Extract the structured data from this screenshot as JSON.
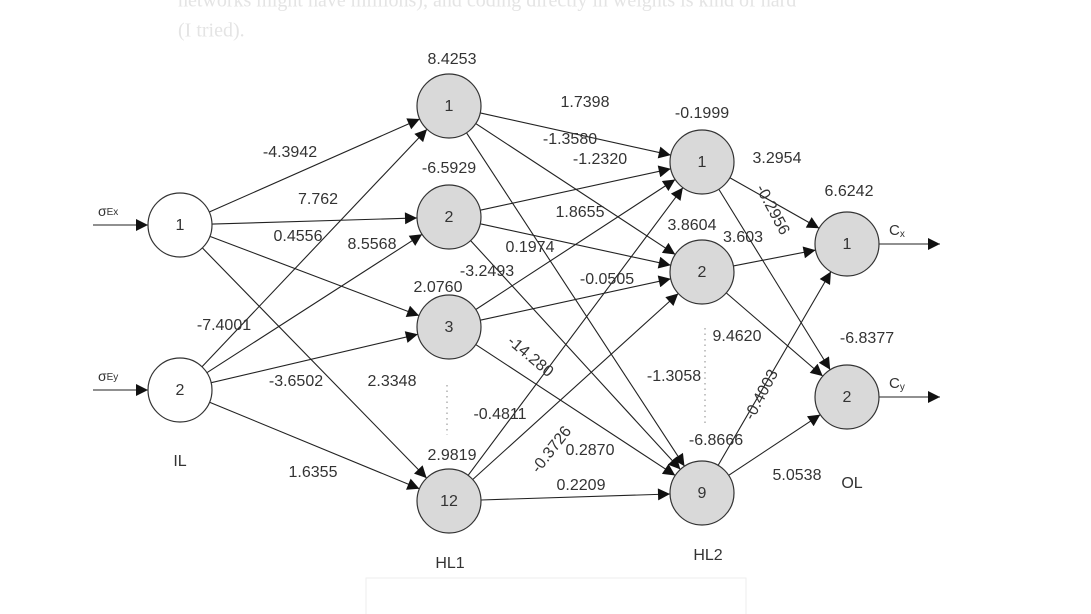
{
  "page_text": [
    "networks might have millions), and coding directly in weights is kind of hard",
    "(I tried)."
  ],
  "layers": [
    {
      "label": "IL",
      "nodes": [
        {
          "label": "1"
        },
        {
          "label": "2"
        }
      ]
    },
    {
      "label": "HL1",
      "nodes": [
        {
          "label": "1",
          "bias": "8.4253"
        },
        {
          "label": "2",
          "bias": "-6.5929"
        },
        {
          "label": "3",
          "bias": "2.0760"
        },
        {
          "label": "12",
          "bias": "2.9819"
        }
      ]
    },
    {
      "label": "HL2",
      "nodes": [
        {
          "label": "1",
          "bias": "-0.1999"
        },
        {
          "label": "2",
          "bias": "3.8604"
        },
        {
          "label": "9",
          "bias": "-6.8666"
        }
      ]
    },
    {
      "label": "OL",
      "nodes": [
        {
          "label": "1",
          "bias": "6.6242"
        },
        {
          "label": "2",
          "bias": "-6.8377"
        }
      ]
    }
  ],
  "inputs": [
    {
      "symbol": "σ",
      "sub": "Ex"
    },
    {
      "symbol": "σ",
      "sub": "Ey"
    }
  ],
  "outputs": [
    {
      "symbol": "C",
      "sub": "x"
    },
    {
      "symbol": "C",
      "sub": "y"
    }
  ],
  "weights": [
    "-4.3942",
    "7.762",
    "0.4556",
    "8.5568",
    "-7.4001",
    "-3.6502",
    "2.3348",
    "1.6355",
    "1.7398",
    "-1.3580",
    "-1.2320",
    "1.8655",
    "0.1974",
    "-3.2493",
    "-0.0505",
    "-14.280",
    "-0.4811",
    "-0.3726",
    "0.2870",
    "0.2209",
    "-1.3058",
    "3.2954",
    "-0.2956",
    "3.603",
    "9.4620",
    "-0.4003",
    "5.0538"
  ]
}
